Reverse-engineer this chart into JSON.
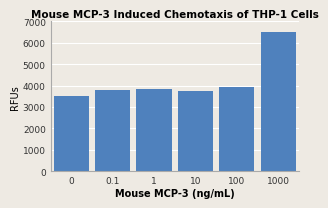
{
  "title": "Mouse MCP-3 Induced Chemotaxis of THP-1 Cells",
  "xlabel": "Mouse MCP-3 (ng/mL)",
  "ylabel": "RFUs",
  "categories": [
    "0",
    "0.1",
    "1",
    "10",
    "100",
    "1000"
  ],
  "values": [
    3520,
    3800,
    3820,
    3740,
    3920,
    6480
  ],
  "bar_color": "#4f81bd",
  "ylim": [
    0,
    7000
  ],
  "yticks": [
    0,
    1000,
    2000,
    3000,
    4000,
    5000,
    6000,
    7000
  ],
  "title_fontsize": 7.5,
  "axis_label_fontsize": 7,
  "tick_fontsize": 6.5,
  "background_color": "#eeeae3",
  "grid_color": "#ffffff",
  "bar_width": 0.85,
  "spine_color": "#aaaaaa"
}
